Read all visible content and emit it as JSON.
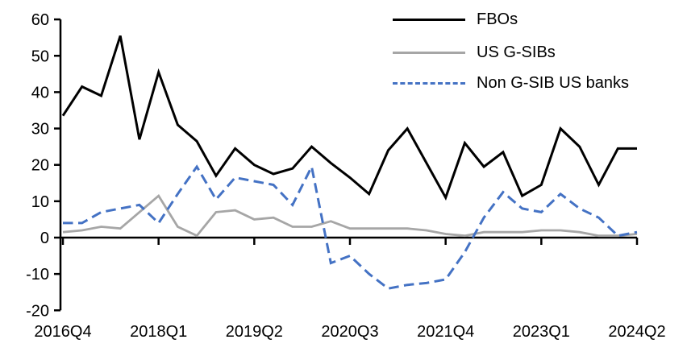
{
  "chart_data": {
    "type": "line",
    "title": "",
    "xlabel": "",
    "ylabel": "",
    "ylim": [
      -20,
      60
    ],
    "grid": "off",
    "legend_position": "top-right",
    "axis_color": "#000000",
    "categories": [
      "2016Q4",
      "2017Q1",
      "2017Q2",
      "2017Q3",
      "2017Q4",
      "2018Q1",
      "2018Q2",
      "2018Q3",
      "2018Q4",
      "2019Q1",
      "2019Q2",
      "2019Q3",
      "2019Q4",
      "2020Q1",
      "2020Q2",
      "2020Q3",
      "2020Q4",
      "2021Q1",
      "2021Q2",
      "2021Q3",
      "2021Q4",
      "2022Q1",
      "2022Q2",
      "2022Q3",
      "2022Q4",
      "2023Q1",
      "2023Q2",
      "2023Q3",
      "2023Q4",
      "2024Q1",
      "2024Q2"
    ],
    "series": [
      {
        "name": "FBOs",
        "color": "#000000",
        "style": "solid",
        "values": [
          33.5,
          41.5,
          39,
          55.5,
          27,
          45.5,
          31,
          26.5,
          17,
          24.5,
          20,
          17.5,
          19,
          25,
          20.5,
          16.5,
          12,
          24,
          30,
          20.5,
          11,
          26,
          19.5,
          23.5,
          11.5,
          14.5,
          30,
          25,
          14.5,
          24.5,
          24.5
        ]
      },
      {
        "name": "US G-SIBs",
        "color": "#a6a6a6",
        "style": "solid",
        "values": [
          1.5,
          2,
          3,
          2.5,
          7,
          11.5,
          3,
          0.5,
          7,
          7.5,
          5,
          5.5,
          3,
          3,
          4.5,
          2.5,
          2.5,
          2.5,
          2.5,
          2,
          1,
          0.5,
          1.5,
          1.5,
          1.5,
          2,
          2,
          1.5,
          0.5,
          0.5,
          1
        ]
      },
      {
        "name": "Non G-SIB US banks",
        "color": "#4472c4",
        "style": "dashed",
        "values": [
          4,
          4,
          7,
          8,
          9,
          4,
          12,
          19.5,
          10.5,
          16.5,
          15.5,
          14.5,
          9,
          19.5,
          -7,
          -5,
          -10,
          -14,
          -13,
          -12.5,
          -11.5,
          -4,
          5.5,
          12.5,
          8,
          7,
          12,
          8,
          5.5,
          0.5,
          1.5
        ]
      }
    ],
    "y_ticks": [
      60,
      50,
      40,
      30,
      20,
      10,
      0,
      -10,
      -20
    ],
    "x_tick_labels": [
      "2016Q4",
      "2018Q1",
      "2019Q2",
      "2020Q3",
      "2021Q4",
      "2023Q1",
      "2024Q2"
    ],
    "x_tick_indices": [
      0,
      5,
      10,
      15,
      20,
      25,
      30
    ]
  }
}
